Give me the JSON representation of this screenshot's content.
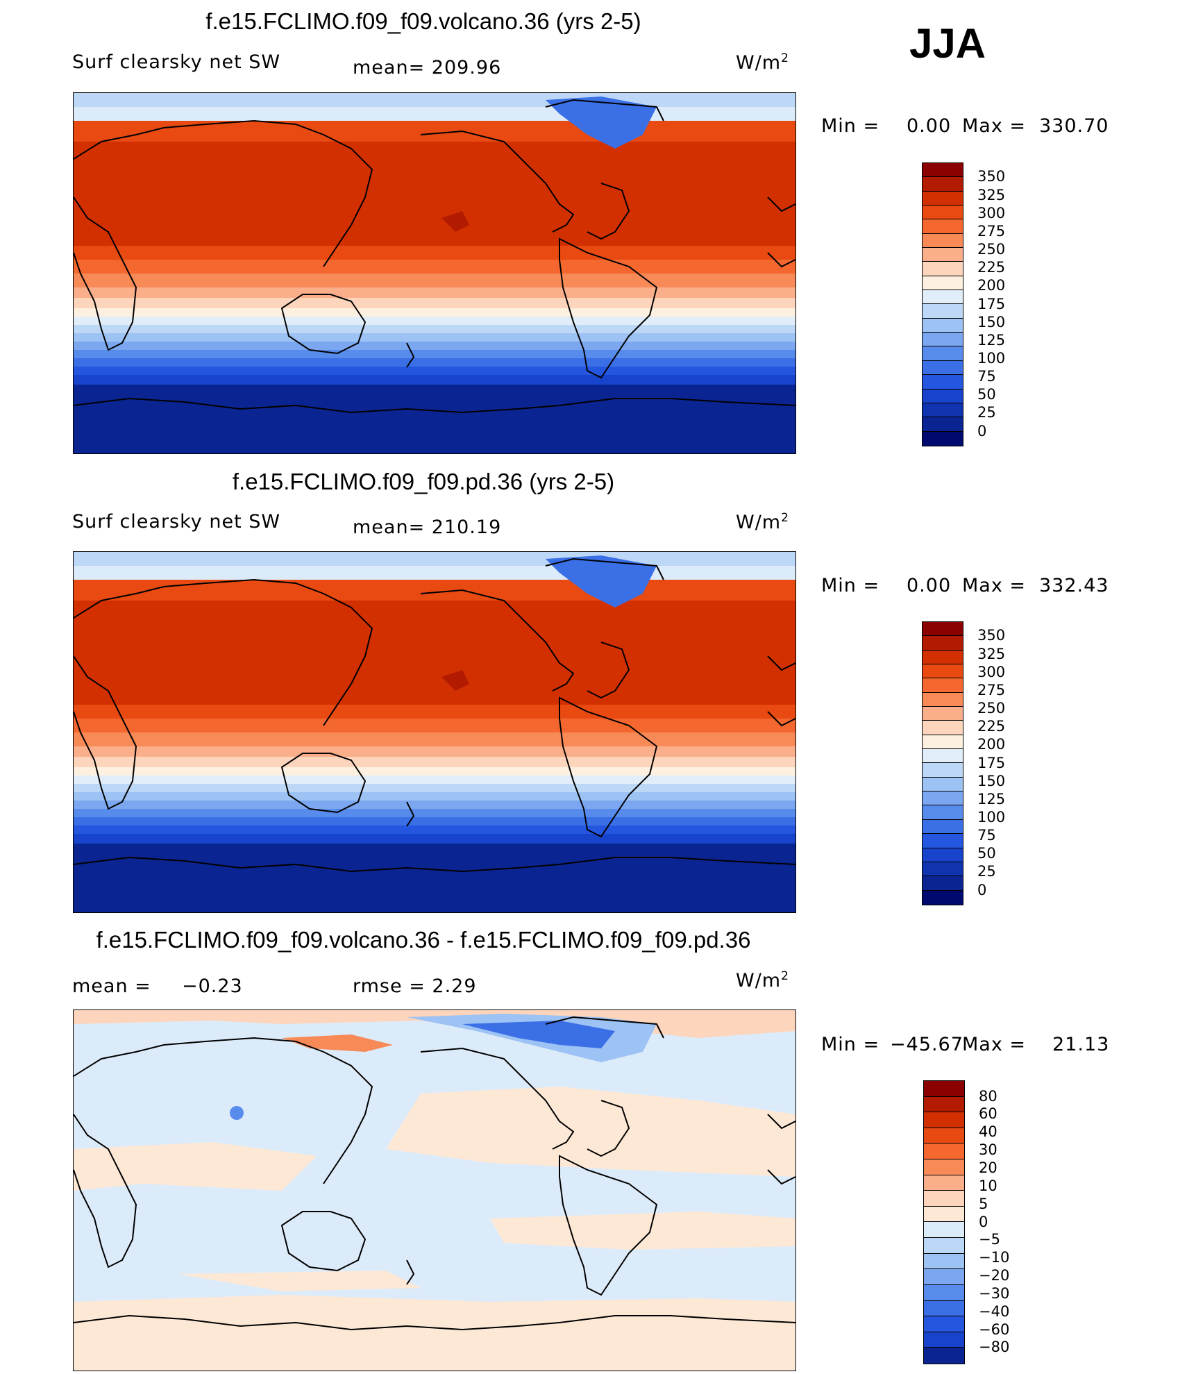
{
  "season": "JJA",
  "panels": [
    {
      "title": "f.e15.FCLIMO.f09_f09.volcano.36 (yrs 2-5)",
      "variable": "Surf clearsky net SW",
      "stat1": "mean=  209.96",
      "stat2": "",
      "units_base": "W/m",
      "units_exp": "2",
      "min_label": "Min  =",
      "min_value": "0.00",
      "max_label": "Max  =",
      "max_value": "330.70",
      "colorbar_labels": [
        "350",
        "325",
        "300",
        "275",
        "250",
        "225",
        "200",
        "175",
        "150",
        "125",
        "100",
        "75",
        "50",
        "25",
        "0"
      ],
      "colorbar_colors": [
        "#8b0000",
        "#b31b00",
        "#d23000",
        "#e84a12",
        "#f4682f",
        "#f78a57",
        "#fbae8a",
        "#fdd5bc",
        "#fdf0e0",
        "#e1eef9",
        "#bdd8f7",
        "#9dc2f4",
        "#7ba7f0",
        "#578cec",
        "#3a6fe6",
        "#2456df",
        "#1843cb",
        "#1033b0",
        "#0a2591",
        "#000a6e"
      ]
    },
    {
      "title": "f.e15.FCLIMO.f09_f09.pd.36 (yrs 2-5)",
      "variable": "Surf clearsky net SW",
      "stat1": "mean=  210.19",
      "stat2": "",
      "units_base": "W/m",
      "units_exp": "2",
      "min_label": "Min  =",
      "min_value": "0.00",
      "max_label": "Max  =",
      "max_value": "332.43",
      "colorbar_labels": [
        "350",
        "325",
        "300",
        "275",
        "250",
        "225",
        "200",
        "175",
        "150",
        "125",
        "100",
        "75",
        "50",
        "25",
        "0"
      ],
      "colorbar_colors": [
        "#8b0000",
        "#b31b00",
        "#d23000",
        "#e84a12",
        "#f4682f",
        "#f78a57",
        "#fbae8a",
        "#fdd5bc",
        "#fdf0e0",
        "#e1eef9",
        "#bdd8f7",
        "#9dc2f4",
        "#7ba7f0",
        "#578cec",
        "#3a6fe6",
        "#2456df",
        "#1843cb",
        "#1033b0",
        "#0a2591",
        "#000a6e"
      ]
    },
    {
      "title": "f.e15.FCLIMO.f09_f09.volcano.36 - f.e15.FCLIMO.f09_f09.pd.36",
      "variable": "mean  =",
      "stat1": "−0.23",
      "stat2": "rmse  =     2.29",
      "units_base": "W/m",
      "units_exp": "2",
      "min_label": "Min  =",
      "min_value": "−45.67",
      "max_label": "Max  =",
      "max_value": "21.13",
      "colorbar_labels": [
        "80",
        "60",
        "40",
        "30",
        "20",
        "10",
        "5",
        "0",
        "−5",
        "−10",
        "−20",
        "−30",
        "−40",
        "−60",
        "−80"
      ],
      "colorbar_colors": [
        "#8b0000",
        "#b31b00",
        "#d23000",
        "#e84a12",
        "#f4682f",
        "#f78a57",
        "#fbae8a",
        "#fdd5bc",
        "#fde8d6",
        "#dcebf9",
        "#bdd8f7",
        "#9dc2f4",
        "#7ba7f0",
        "#578cec",
        "#3a6fe6",
        "#2456df",
        "#1843cb",
        "#0a2591"
      ]
    }
  ]
}
